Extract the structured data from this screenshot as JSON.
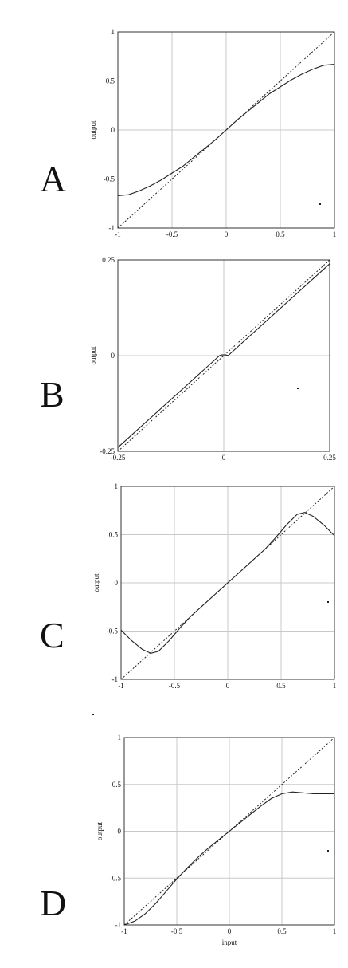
{
  "chart_data": [
    {
      "panel": "A",
      "type": "line",
      "xlabel": "",
      "ylabel": "output",
      "xlim": [
        -1,
        1
      ],
      "ylim": [
        -1,
        1
      ],
      "xticks": [
        "-1",
        "-0.5",
        "0",
        "0.5",
        "1"
      ],
      "yticks": [
        "-1",
        "-0.5",
        "0",
        "0.5",
        "1"
      ],
      "xtick_values": [
        -1,
        -0.5,
        0,
        0.5,
        1
      ],
      "ytick_values": [
        -1,
        -0.5,
        0,
        0.5,
        1
      ],
      "grid": true,
      "reference": {
        "style": "dotted",
        "x": [
          -1,
          1
        ],
        "y": [
          -1,
          1
        ]
      },
      "series": [
        {
          "style": "solid",
          "x": [
            -1,
            -0.9,
            -0.8,
            -0.7,
            -0.6,
            -0.5,
            -0.4,
            -0.3,
            -0.2,
            -0.1,
            0,
            0.1,
            0.2,
            0.3,
            0.4,
            0.5,
            0.6,
            0.7,
            0.8,
            0.9,
            1
          ],
          "y": [
            -0.67,
            -0.66,
            -0.62,
            -0.57,
            -0.51,
            -0.44,
            -0.37,
            -0.28,
            -0.19,
            -0.1,
            0,
            0.1,
            0.19,
            0.28,
            0.37,
            0.44,
            0.51,
            0.57,
            0.62,
            0.66,
            0.67
          ]
        }
      ]
    },
    {
      "panel": "B",
      "type": "line",
      "xlabel": "",
      "ylabel": "output",
      "xlim": [
        -0.25,
        0.25
      ],
      "ylim": [
        -0.25,
        0.25
      ],
      "xticks": [
        "-0.25",
        "0",
        "0.25"
      ],
      "yticks": [
        "-0.25",
        "0",
        "0.25"
      ],
      "xtick_values": [
        -0.25,
        0,
        0.25
      ],
      "ytick_values": [
        -0.25,
        0,
        0.25
      ],
      "grid": true,
      "reference": {
        "style": "dotted",
        "x": [
          -0.25,
          0.25
        ],
        "y": [
          -0.25,
          0.25
        ]
      },
      "series": [
        {
          "style": "solid",
          "x": [
            -0.25,
            -0.01,
            -0.005,
            0,
            0.005,
            0.01,
            0.25
          ],
          "y": [
            -0.24,
            0.0,
            0.002,
            0.002,
            0.002,
            0.0,
            0.24
          ]
        }
      ]
    },
    {
      "panel": "C",
      "type": "line",
      "xlabel": "",
      "ylabel": "output",
      "xlim": [
        -1,
        1
      ],
      "ylim": [
        -1,
        1
      ],
      "xticks": [
        "-1",
        "-0.5",
        "0",
        "0.5",
        "1"
      ],
      "yticks": [
        "-1",
        "-0.5",
        "0",
        "0.5",
        "1"
      ],
      "xtick_values": [
        -1,
        -0.5,
        0,
        0.5,
        1
      ],
      "ytick_values": [
        -1,
        -0.5,
        0,
        0.5,
        1
      ],
      "grid": true,
      "reference": {
        "style": "dotted",
        "x": [
          -1,
          1
        ],
        "y": [
          -1,
          1
        ]
      },
      "series": [
        {
          "style": "solid",
          "x": [
            -1,
            -0.9,
            -0.8,
            -0.72,
            -0.65,
            -0.55,
            -0.45,
            -0.35,
            -0.25,
            -0.15,
            0,
            0.15,
            0.25,
            0.35,
            0.45,
            0.55,
            0.65,
            0.72,
            0.8,
            0.9,
            1
          ],
          "y": [
            -0.49,
            -0.6,
            -0.69,
            -0.73,
            -0.71,
            -0.6,
            -0.47,
            -0.35,
            -0.25,
            -0.15,
            0,
            0.15,
            0.25,
            0.35,
            0.47,
            0.6,
            0.71,
            0.73,
            0.69,
            0.6,
            0.49
          ]
        }
      ]
    },
    {
      "panel": "D",
      "type": "line",
      "xlabel": "input",
      "ylabel": "output",
      "xlim": [
        -1,
        1
      ],
      "ylim": [
        -1,
        1
      ],
      "xticks": [
        "-1",
        "-0.5",
        "0",
        "0.5",
        "1"
      ],
      "yticks": [
        "-1",
        "-0.5",
        "0",
        "0.5",
        "1"
      ],
      "xtick_values": [
        -1,
        -0.5,
        0,
        0.5,
        1
      ],
      "ytick_values": [
        -1,
        -0.5,
        0,
        0.5,
        1
      ],
      "grid": true,
      "reference": {
        "style": "dotted",
        "x": [
          -1,
          1
        ],
        "y": [
          -1,
          1
        ]
      },
      "series": [
        {
          "style": "solid",
          "x": [
            -1,
            -0.9,
            -0.8,
            -0.7,
            -0.6,
            -0.5,
            -0.4,
            -0.3,
            -0.2,
            -0.1,
            0,
            0.1,
            0.2,
            0.3,
            0.4,
            0.5,
            0.6,
            0.7,
            0.8,
            0.9,
            1
          ],
          "y": [
            -1.0,
            -0.96,
            -0.88,
            -0.77,
            -0.64,
            -0.51,
            -0.39,
            -0.28,
            -0.18,
            -0.09,
            0,
            0.09,
            0.18,
            0.27,
            0.35,
            0.4,
            0.42,
            0.41,
            0.4,
            0.4,
            0.4
          ]
        }
      ]
    }
  ],
  "panels": [
    {
      "letter": "A"
    },
    {
      "letter": "B"
    },
    {
      "letter": "C"
    },
    {
      "letter": "D"
    }
  ]
}
